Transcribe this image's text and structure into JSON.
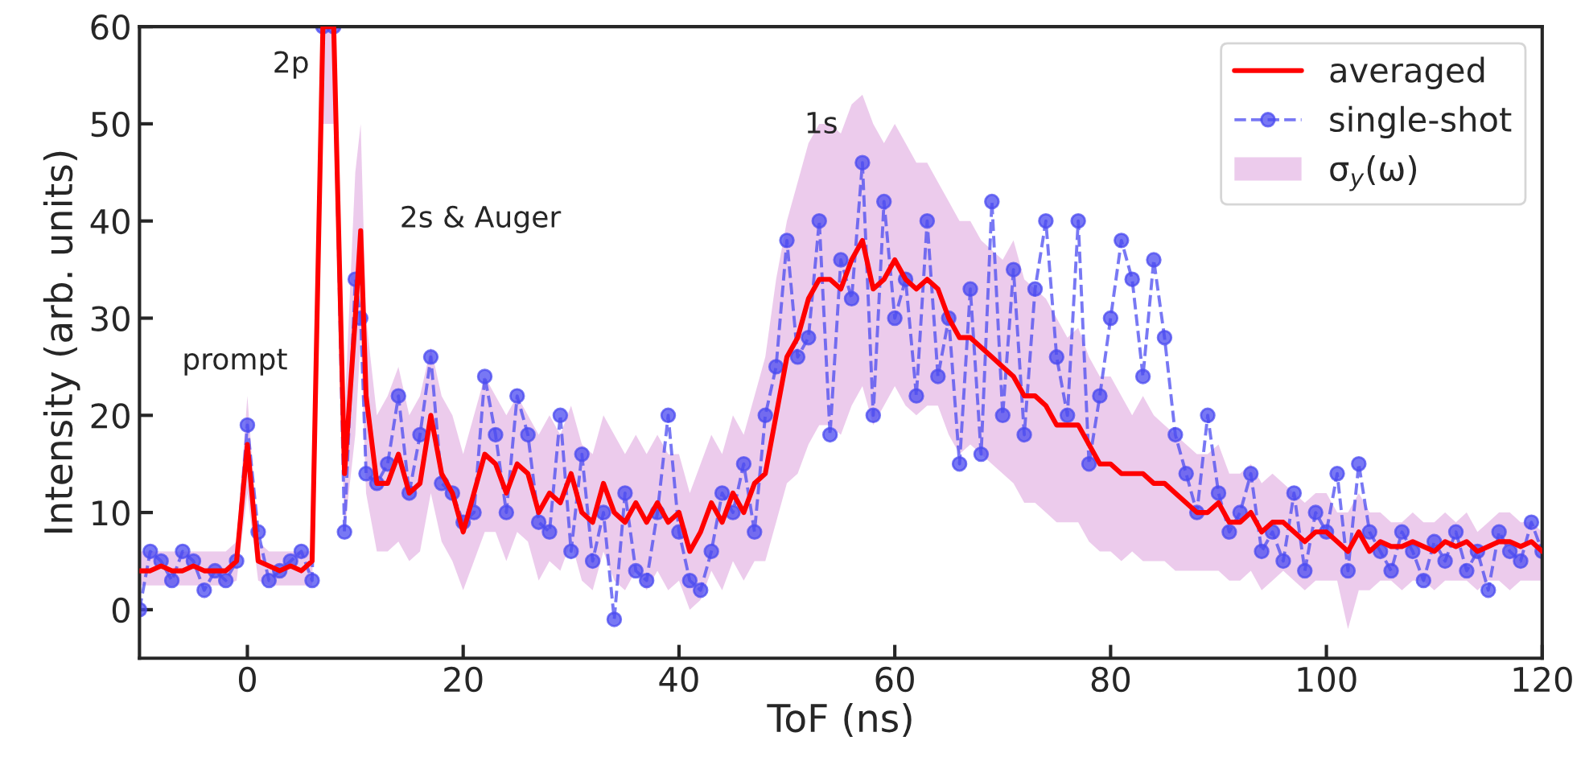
{
  "chart_data": {
    "type": "line",
    "xlabel": "ToF (ns)",
    "ylabel": "Intensity (arb. units)",
    "x": [
      -10,
      -9,
      -8,
      -7,
      -6,
      -5,
      -4,
      -3,
      -2,
      -1,
      0,
      1,
      2,
      3,
      4,
      5,
      6,
      7,
      8,
      9,
      10,
      10.5,
      11,
      12,
      13,
      14,
      15,
      16,
      17,
      18,
      19,
      20,
      21,
      22,
      23,
      24,
      25,
      26,
      27,
      28,
      29,
      30,
      31,
      32,
      33,
      34,
      35,
      36,
      37,
      38,
      39,
      40,
      41,
      42,
      43,
      44,
      45,
      46,
      47,
      48,
      49,
      50,
      51,
      52,
      53,
      54,
      55,
      56,
      57,
      58,
      59,
      60,
      61,
      62,
      63,
      64,
      65,
      66,
      67,
      68,
      69,
      70,
      71,
      72,
      73,
      74,
      75,
      76,
      77,
      78,
      79,
      80,
      81,
      82,
      83,
      84,
      85,
      86,
      87,
      88,
      89,
      90,
      91,
      92,
      93,
      94,
      95,
      96,
      97,
      98,
      99,
      100,
      101,
      102,
      103,
      104,
      105,
      106,
      107,
      108,
      109,
      110,
      111,
      112,
      113,
      114,
      115,
      116,
      117,
      118,
      119,
      120
    ],
    "xlim": [
      -10,
      120
    ],
    "xticks": [
      0,
      20,
      40,
      60,
      80,
      100,
      120
    ],
    "ylim": [
      -5,
      60
    ],
    "yticks": [
      0,
      10,
      20,
      30,
      40,
      50,
      60
    ],
    "grid": false,
    "legend": "top right",
    "series": [
      {
        "name": "σ$_{y}$(ω)",
        "type": "area",
        "color": "#dda0dd",
        "values": [
          null,
          null,
          null,
          null,
          null,
          null,
          null,
          null,
          null,
          null,
          null,
          null,
          null,
          null,
          null,
          null,
          null,
          null,
          null,
          null,
          null,
          null,
          null,
          null,
          null,
          null,
          null,
          null,
          null,
          null,
          null,
          null,
          null,
          null,
          null,
          null,
          null,
          null,
          null,
          null,
          null,
          null,
          null,
          null,
          null,
          null,
          null,
          null,
          null,
          null,
          null,
          null,
          null,
          null,
          null,
          null,
          null,
          null,
          null,
          null,
          null,
          null,
          null,
          null,
          null,
          null,
          null,
          null,
          null,
          null,
          null,
          null,
          null,
          null,
          null,
          null,
          null,
          null,
          null,
          null,
          null,
          null,
          null,
          null,
          null,
          null,
          null,
          null,
          null,
          null,
          null,
          null,
          null,
          null,
          null,
          null,
          null,
          null,
          null,
          null,
          null,
          null,
          null,
          null,
          null,
          null,
          null,
          null,
          null,
          null,
          null,
          null,
          null,
          null,
          null,
          null,
          null,
          null,
          null,
          null,
          null,
          null,
          null,
          null,
          null,
          null,
          null,
          null,
          null,
          null,
          null,
          null
        ],
        "upper": [
          6,
          6,
          6,
          6,
          6,
          6,
          6,
          6,
          6,
          7,
          22,
          7,
          6,
          6,
          6,
          6,
          6,
          60,
          60,
          20,
          45,
          50,
          30,
          20,
          22,
          25,
          20,
          22,
          27,
          22,
          20,
          16,
          20,
          24,
          22,
          20,
          22,
          20,
          18,
          20,
          18,
          21,
          17,
          16,
          20,
          18,
          16,
          18,
          16,
          18,
          16,
          16,
          12,
          15,
          18,
          16,
          20,
          18,
          22,
          26,
          34,
          40,
          44,
          48,
          50,
          50,
          49,
          52,
          53,
          50,
          48,
          50,
          48,
          46,
          46,
          44,
          42,
          40,
          40,
          38,
          37,
          36,
          38,
          34,
          33,
          32,
          30,
          28,
          29,
          26,
          24,
          24,
          22,
          20,
          22,
          20,
          19,
          18,
          17,
          16,
          16,
          17,
          14,
          14,
          15,
          13,
          14,
          13,
          12,
          11,
          12,
          12,
          10,
          10,
          12,
          10,
          10,
          9,
          9,
          10,
          9,
          9,
          10,
          9,
          10,
          8,
          9,
          10,
          10,
          9,
          9,
          8
        ],
        "lower": [
          2.5,
          2.5,
          2.5,
          2.5,
          2.5,
          2.5,
          2.5,
          2.5,
          2.5,
          3,
          12,
          3,
          2.5,
          2.5,
          2.5,
          2.5,
          2.5,
          50,
          50,
          8,
          18,
          28,
          12,
          6,
          6,
          7,
          5,
          6,
          12,
          7,
          5,
          2,
          5,
          8,
          8,
          5,
          8,
          7,
          3,
          5,
          4,
          7,
          3,
          2,
          6,
          3,
          2,
          4,
          2,
          4,
          2,
          3,
          0,
          1,
          4,
          2,
          5,
          3,
          5,
          5,
          9,
          13,
          14,
          17,
          19,
          19,
          18,
          21,
          23,
          19,
          21,
          23,
          21,
          20,
          21,
          21,
          18,
          16,
          17,
          16,
          15,
          14,
          13,
          11,
          11,
          10,
          9,
          9,
          9,
          7,
          6,
          6,
          5,
          6,
          5,
          5,
          5,
          4,
          4,
          4,
          4,
          4,
          3,
          3,
          4,
          2,
          3,
          4,
          3,
          2,
          3,
          3,
          3,
          -2,
          2,
          2,
          3,
          3,
          2,
          3,
          3,
          2,
          3,
          3,
          3,
          2,
          3,
          3,
          2,
          3,
          3,
          3
        ]
      },
      {
        "name": "averaged",
        "type": "line",
        "color": "#ff0000",
        "marker": "none",
        "line_style": "solid",
        "values": [
          4,
          4,
          4.5,
          4,
          4,
          4.5,
          4,
          4,
          4,
          5,
          17,
          5,
          4.5,
          4,
          4.5,
          4,
          5,
          60,
          60,
          14,
          30,
          39,
          22,
          13,
          13,
          16,
          12,
          13,
          20,
          14,
          12,
          8,
          12,
          16,
          15,
          12,
          15,
          14,
          10,
          12,
          11,
          14,
          10,
          9,
          13,
          10,
          9,
          11,
          9,
          11,
          9,
          10,
          6,
          8,
          11,
          9,
          12,
          10,
          13,
          14,
          20,
          26,
          28,
          32,
          34,
          34,
          33,
          36,
          38,
          33,
          34,
          36,
          34,
          33,
          34,
          33,
          30,
          28,
          28,
          27,
          26,
          25,
          24,
          22,
          22,
          21,
          19,
          19,
          19,
          17,
          15,
          15,
          14,
          14,
          14,
          13,
          13,
          12,
          11,
          10,
          10,
          11,
          9,
          9,
          10,
          8,
          9,
          9,
          8,
          7,
          8,
          8,
          7,
          6,
          8,
          6,
          7,
          6.5,
          6.5,
          7,
          6.5,
          6,
          7,
          6.5,
          7,
          6,
          6.5,
          7,
          7,
          6.5,
          7,
          6
        ]
      },
      {
        "name": "single-shot",
        "type": "line",
        "color": "#4b4bf0",
        "marker": "circle",
        "line_style": "dashed",
        "values": [
          0,
          6,
          5,
          3,
          6,
          5,
          2,
          4,
          3,
          5,
          19,
          8,
          3,
          4,
          5,
          6,
          3,
          60,
          60,
          8,
          34,
          30,
          14,
          13,
          15,
          22,
          12,
          18,
          26,
          13,
          12,
          9,
          10,
          24,
          18,
          10,
          22,
          18,
          9,
          8,
          20,
          6,
          16,
          5,
          10,
          -1,
          12,
          4,
          3,
          10,
          20,
          8,
          3,
          2,
          6,
          12,
          10,
          15,
          8,
          20,
          25,
          38,
          26,
          28,
          40,
          18,
          36,
          32,
          46,
          20,
          42,
          30,
          34,
          22,
          40,
          24,
          30,
          15,
          33,
          16,
          42,
          20,
          35,
          18,
          33,
          40,
          26,
          20,
          40,
          15,
          22,
          30,
          38,
          34,
          24,
          36,
          28,
          18,
          14,
          10,
          20,
          12,
          8,
          10,
          14,
          6,
          8,
          5,
          12,
          4,
          10,
          8,
          14,
          4,
          15,
          8,
          6,
          4,
          8,
          6,
          3,
          7,
          5,
          8,
          4,
          6,
          2,
          8,
          6,
          5,
          9,
          6
        ]
      }
    ],
    "annotations": [
      "prompt",
      "2p",
      "2s & Auger",
      "1s"
    ]
  }
}
